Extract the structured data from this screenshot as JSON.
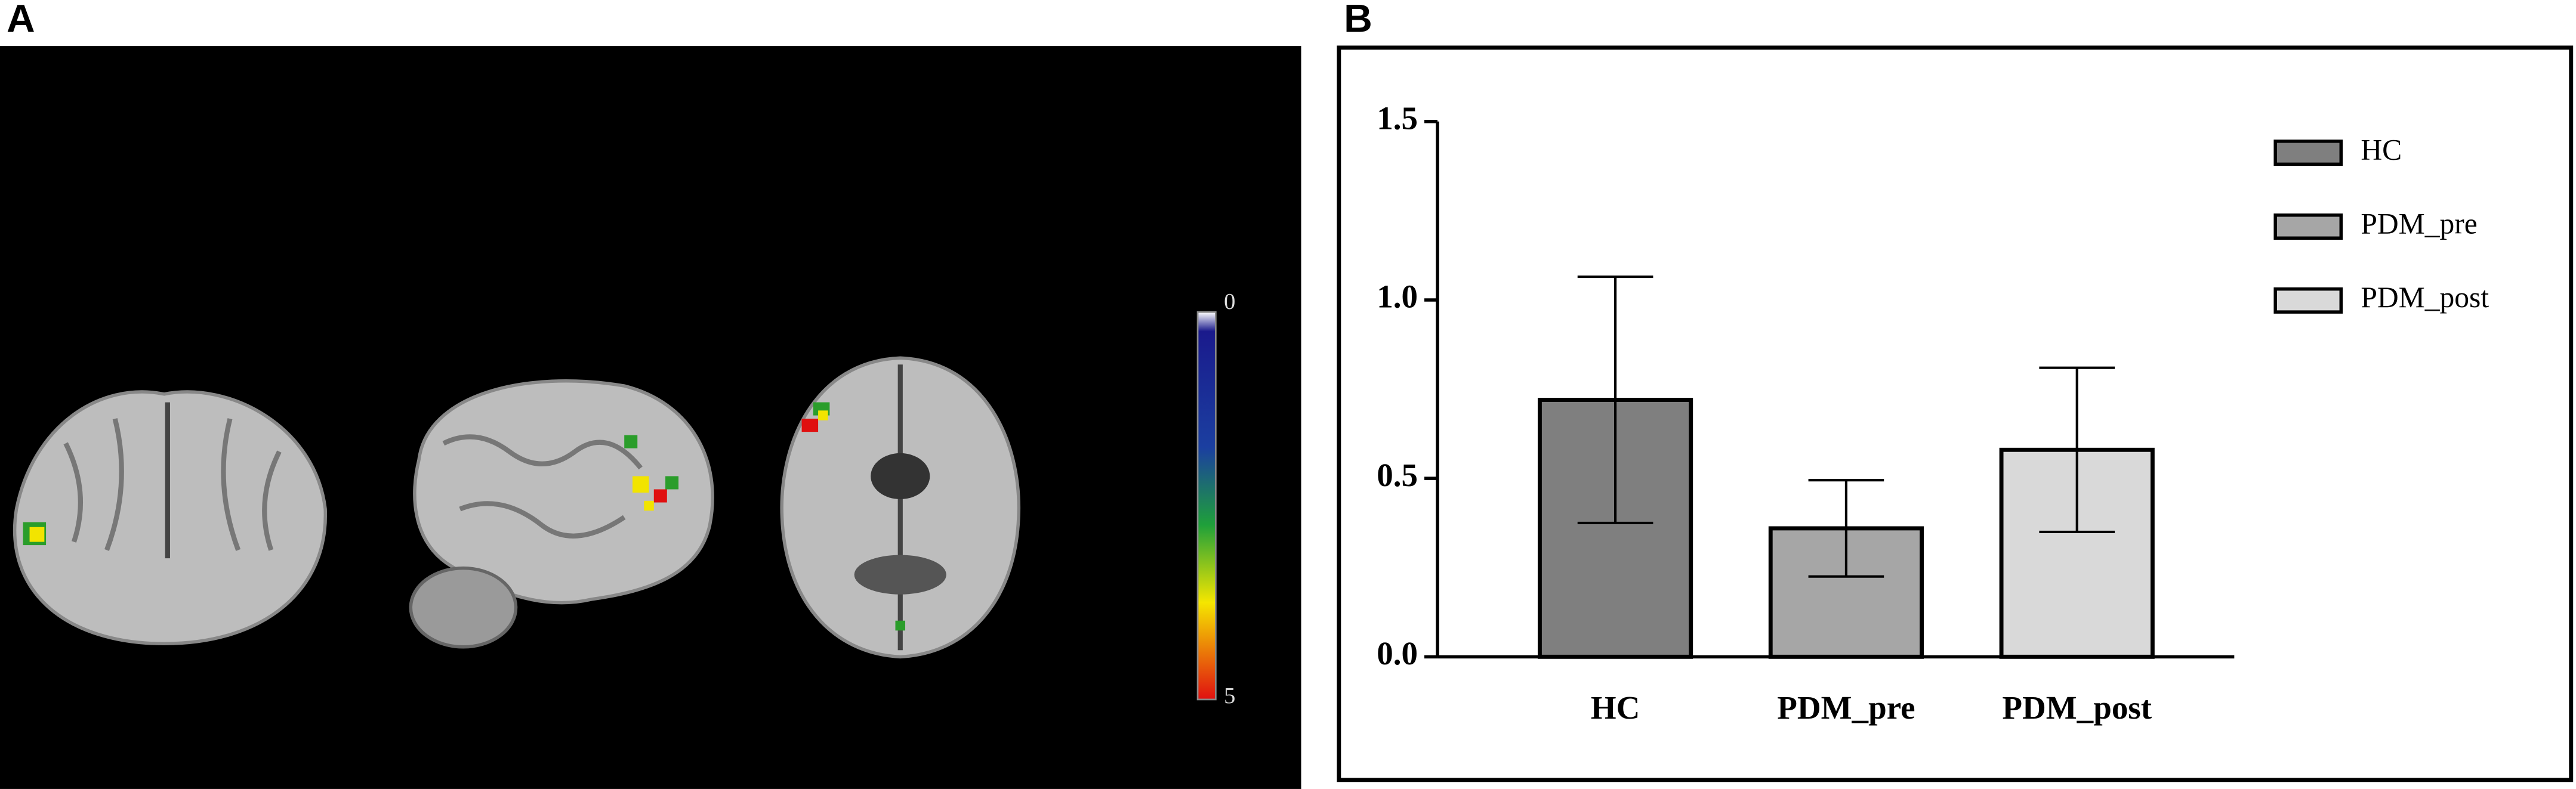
{
  "panel_labels": [
    "A",
    "B"
  ],
  "colorbar": {
    "ticks": [
      0,
      5
    ]
  },
  "chart_data": {
    "type": "bar",
    "categories": [
      "HC",
      "PDM_pre",
      "PDM_post"
    ],
    "values": [
      0.72,
      0.36,
      0.58
    ],
    "errors": [
      0.345,
      0.135,
      0.23
    ],
    "colors": [
      "#7f7f7f",
      "#a6a6a6",
      "#d9d9d9"
    ],
    "ylim": [
      0,
      1.5
    ],
    "yticks": [
      {
        "value": 0,
        "label": "0.0"
      },
      0.5,
      {
        "value": 1,
        "label": "1.0"
      },
      1.5
    ],
    "legend": "top-right"
  }
}
